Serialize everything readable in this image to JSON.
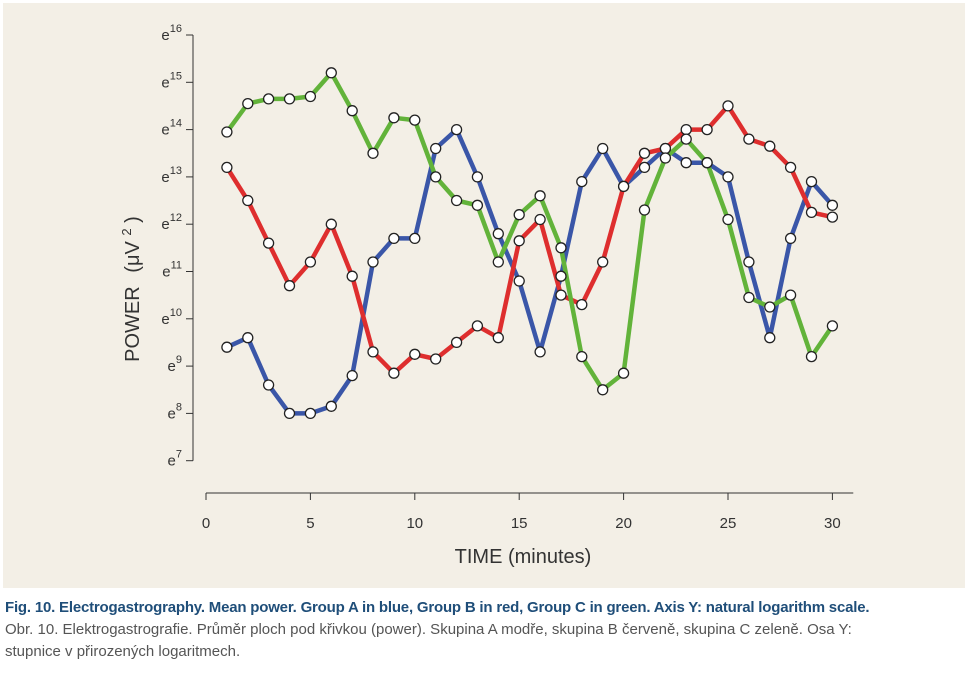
{
  "chart_data": {
    "type": "line",
    "xlabel": "TIME  (minutes)",
    "ylabel_main": "POWER",
    "ylabel_unit": "(μV",
    "ylabel_exp": "2",
    "ylabel_close": ")",
    "x_ticks": [
      "0",
      "5",
      "10",
      "15",
      "20",
      "25",
      "30"
    ],
    "x_tick_values": [
      0,
      5,
      10,
      15,
      20,
      25,
      30
    ],
    "xlim": [
      0,
      31
    ],
    "y_scale": "natural log",
    "y_ticks": [
      {
        "base": "e",
        "exp": "16",
        "value": 16
      },
      {
        "base": "e",
        "exp": "15",
        "value": 15
      },
      {
        "base": "e",
        "exp": "14",
        "value": 14
      },
      {
        "base": "e",
        "exp": "13",
        "value": 13
      },
      {
        "base": "e",
        "exp": "12",
        "value": 12
      },
      {
        "base": "e",
        "exp": "11",
        "value": 11
      },
      {
        "base": "e",
        "exp": "10",
        "value": 10
      },
      {
        "base": "e",
        "exp": "9",
        "value": 9
      },
      {
        "base": "e",
        "exp": "8",
        "value": 8
      },
      {
        "base": "e",
        "exp": "7",
        "value": 7
      }
    ],
    "ylim": [
      6.2,
      16.3
    ],
    "grid": false,
    "x": [
      1,
      2,
      3,
      4,
      5,
      6,
      7,
      8,
      9,
      10,
      11,
      12,
      13,
      14,
      15,
      16,
      17,
      18,
      19,
      20,
      21,
      22,
      23,
      24,
      25,
      26,
      27,
      28,
      29,
      30
    ],
    "series": [
      {
        "color": "#3a56a8",
        "values": [
          9.4,
          9.6,
          8.6,
          8.0,
          8.0,
          8.15,
          8.8,
          11.2,
          11.7,
          11.7,
          13.6,
          14.0,
          13.0,
          11.8,
          10.8,
          9.3,
          10.9,
          12.9,
          13.6,
          12.8,
          13.2,
          13.6,
          13.3,
          13.3,
          13.0,
          11.2,
          9.6,
          11.7,
          12.9,
          12.4
        ]
      },
      {
        "color": "#de2e2e",
        "values": [
          13.2,
          12.5,
          11.6,
          10.7,
          11.2,
          12.0,
          10.9,
          9.3,
          8.85,
          9.25,
          9.15,
          9.5,
          9.85,
          9.6,
          11.65,
          12.1,
          10.5,
          10.3,
          11.2,
          12.8,
          13.5,
          13.6,
          14.0,
          14.0,
          14.5,
          13.8,
          13.65,
          13.2,
          12.25,
          12.15
        ]
      },
      {
        "color": "#62b33a",
        "values": [
          13.95,
          14.55,
          14.65,
          14.65,
          14.7,
          15.2,
          14.4,
          13.5,
          14.25,
          14.2,
          13.0,
          12.5,
          12.4,
          11.2,
          12.2,
          12.6,
          11.5,
          9.2,
          8.5,
          8.85,
          12.3,
          13.4,
          13.8,
          13.3,
          12.1,
          10.45,
          10.25,
          10.5,
          9.2,
          9.85
        ]
      }
    ]
  },
  "caption": {
    "en": "Fig. 10. Electrogastrography. Mean power. Group A in blue, Group B in red, Group C in green. Axis Y: natural logarithm scale.",
    "cz_line1": "Obr. 10. Elektrogastrografie. Průměr ploch pod křivkou (power). Skupina A modře, skupina B červeně, skupina C zeleně. Osa Y:",
    "cz_line2": "stupnice v přirozených logaritmech."
  }
}
